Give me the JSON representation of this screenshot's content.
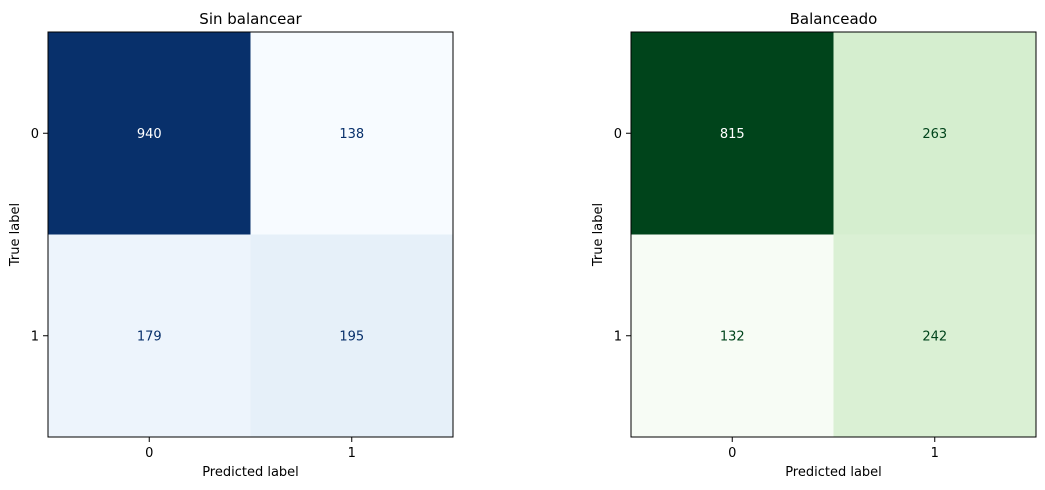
{
  "chart_data": [
    {
      "type": "heatmap",
      "title": "Sin balancear",
      "xlabel": "Predicted label",
      "ylabel": "True label",
      "x_tick_labels": [
        "0",
        "1"
      ],
      "y_tick_labels": [
        "0",
        "1"
      ],
      "values": [
        [
          940,
          138
        ],
        [
          179,
          195
        ]
      ],
      "colormap": "Blues",
      "colors": {
        "cells": [
          [
            "#08306b",
            "#f7fbff"
          ],
          [
            "#edf4fc",
            "#e6f0f9"
          ]
        ],
        "text": [
          [
            "#ffffff",
            "#08306b"
          ],
          [
            "#08306b",
            "#08306b"
          ]
        ]
      },
      "colorbar": false,
      "grid": false
    },
    {
      "type": "heatmap",
      "title": "Balanceado",
      "xlabel": "Predicted label",
      "ylabel": "True label",
      "x_tick_labels": [
        "0",
        "1"
      ],
      "y_tick_labels": [
        "0",
        "1"
      ],
      "values": [
        [
          815,
          263
        ],
        [
          132,
          242
        ]
      ],
      "colormap": "Greens",
      "colors": {
        "cells": [
          [
            "#00441b",
            "#d5eecf"
          ],
          [
            "#f7fcf5",
            "#daf0d4"
          ]
        ],
        "text": [
          [
            "#ffffff",
            "#00441b"
          ],
          [
            "#00441b",
            "#00441b"
          ]
        ]
      },
      "colorbar": false,
      "grid": false
    }
  ]
}
